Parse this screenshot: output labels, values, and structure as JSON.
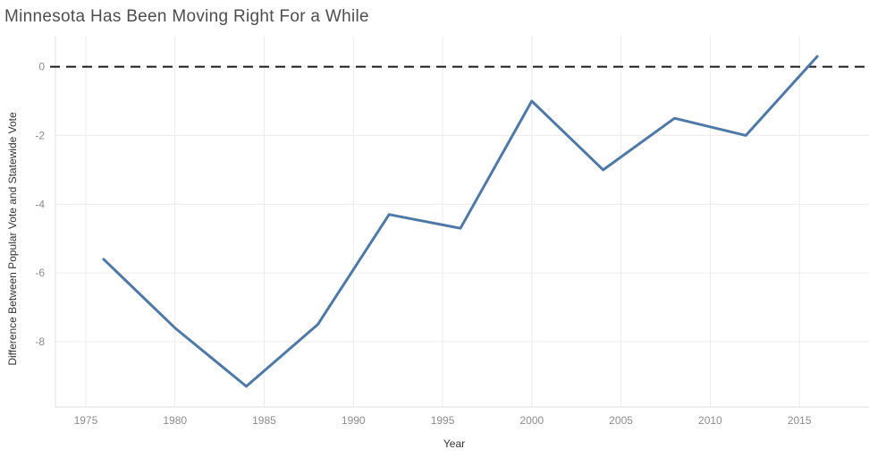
{
  "chart_data": {
    "type": "line",
    "title": "Minnesota Has Been Moving Right For a While",
    "xlabel": "Year",
    "ylabel": "Difference Between Popular Vote and Statewide Vote",
    "x": [
      1976,
      1980,
      1984,
      1988,
      1992,
      1996,
      2000,
      2004,
      2008,
      2012,
      2016
    ],
    "values": [
      -5.6,
      -7.6,
      -9.3,
      -7.5,
      -4.3,
      -4.7,
      -1.0,
      -3.0,
      -1.5,
      -2.0,
      0.3
    ],
    "series": [
      {
        "name": "Difference Between Popular Vote and Statewide Vote",
        "values": [
          -5.6,
          -7.6,
          -9.3,
          -7.5,
          -4.3,
          -4.7,
          -1.0,
          -3.0,
          -1.5,
          -2.0,
          0.3
        ]
      }
    ],
    "x_ticks": [
      1975,
      1980,
      1985,
      1990,
      1995,
      2000,
      2005,
      2010,
      2015
    ],
    "y_ticks": [
      0,
      -2,
      -4,
      -6,
      -8
    ],
    "xlim": [
      1973.3,
      2018.9
    ],
    "ylim": [
      -9.9,
      0.9
    ],
    "grid": true,
    "legend": "none",
    "reference_line": {
      "y": 0,
      "style": "dashed"
    },
    "colors": {
      "line": "#4e79a7",
      "grid": "#ececec",
      "pane_border": "#e0e0e0",
      "reference": "#1a1a1a",
      "tick_label": "#8c8c8c",
      "axis_title": "#333333",
      "title": "#4e4e4e"
    }
  }
}
